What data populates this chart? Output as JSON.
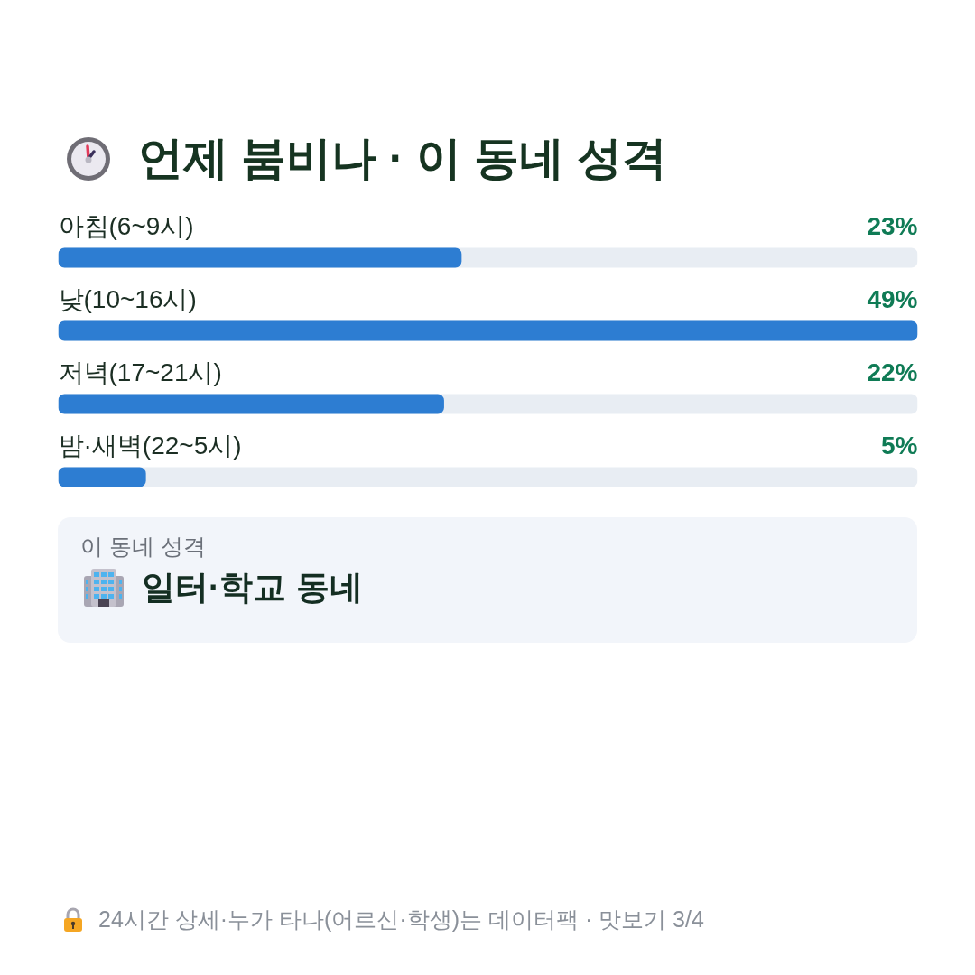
{
  "chart_data": {
    "type": "bar",
    "orientation": "horizontal",
    "title": "언제 붐비나 · 이 동네 성격",
    "categories": [
      "아침(6~9시)",
      "낮(10~16시)",
      "저녁(17~21시)",
      "밤·새벽(22~5시)"
    ],
    "values": [
      23,
      49,
      22,
      5
    ],
    "value_labels": [
      "23%",
      "49%",
      "22%",
      "5%"
    ],
    "color": "#2d7dd2",
    "annotations": [
      "이 동네 성격",
      "일터·학교 동네",
      "24시간 상세·누가 타나(어르신·학생)는 데이터팩 · 맛보기 3/4"
    ]
  }
}
